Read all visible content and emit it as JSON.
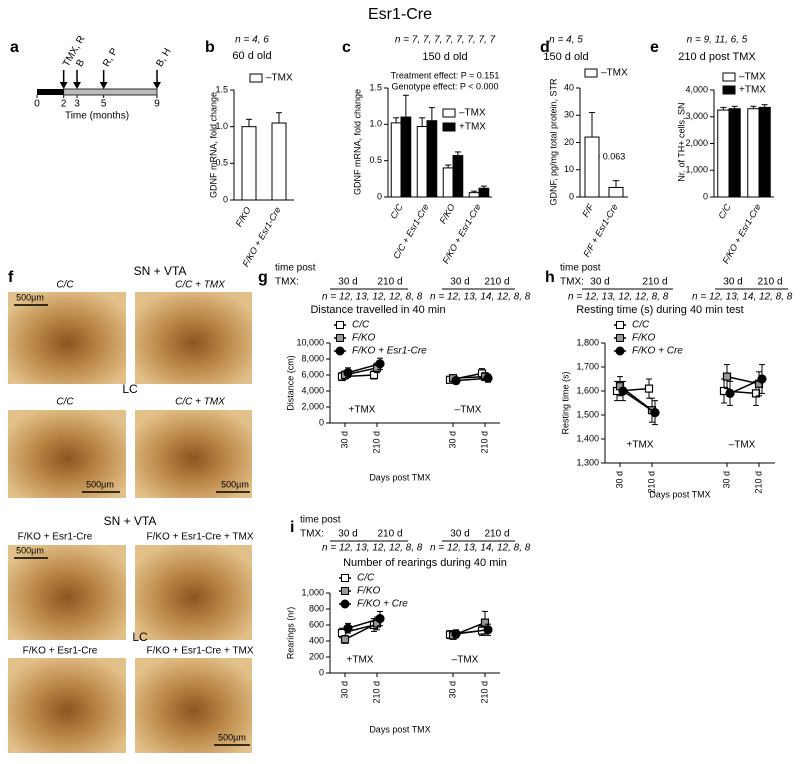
{
  "title": "Esr1-Cre",
  "chart_data": [
    {
      "type": "timeline",
      "letter": "a",
      "xlim": [
        0,
        9
      ],
      "xticks": [
        0,
        2,
        3,
        5,
        9
      ],
      "events": [
        {
          "at": 2,
          "label": "TMX, R"
        },
        {
          "at": 3,
          "label": "B"
        },
        {
          "at": 5,
          "label": "R, P"
        },
        {
          "at": 9,
          "label": "B, H"
        }
      ],
      "xlabel": "Time (months)"
    },
    {
      "type": "bar",
      "letter": "b",
      "n_label": "n = 4, 6",
      "subtitle": "60 d old",
      "ylabel": "GDNF mRNA, fold change",
      "categories": [
        "F/KO",
        "F/KO + Esr1-Cre"
      ],
      "series": [
        {
          "name": "–TMX",
          "color": "#ffffff",
          "values": [
            1.0,
            1.05
          ],
          "errors": [
            0.1,
            0.14
          ]
        }
      ],
      "ylim": [
        0,
        1.5
      ],
      "yticks": [
        0,
        0.5,
        {
          "value": 1,
          "label": "1.0"
        },
        1.5
      ]
    },
    {
      "type": "bar",
      "letter": "c",
      "n_label": "n = 7, 7, 7, 7, 7, 7, 7, 7",
      "subtitle": "150 d old",
      "ylabel": "GDNF mRNA, fold change",
      "annotations": [
        "Treatment effect: P = 0.151",
        "Genotype effect: P < 0.000"
      ],
      "categories": [
        "C/C",
        "C/C + Esr1-Cre",
        "F/KO",
        "F/KO + Esr1-Cre"
      ],
      "series": [
        {
          "name": "–TMX",
          "color": "#ffffff",
          "values": [
            1.02,
            0.97,
            0.4,
            0.06
          ],
          "errors": [
            0.07,
            0.12,
            0.04,
            0.02
          ]
        },
        {
          "name": "+TMX",
          "color": "#000000",
          "values": [
            1.1,
            1.05,
            0.57,
            0.12
          ],
          "errors": [
            0.3,
            0.18,
            0.05,
            0.03
          ]
        }
      ],
      "ylim": [
        0,
        1.5
      ],
      "yticks": [
        0,
        0.5,
        {
          "value": 1,
          "label": "1.0"
        },
        1.5
      ]
    },
    {
      "type": "bar",
      "letter": "d",
      "n_label": "n = 4, 5",
      "subtitle": "150 d old",
      "ylabel": "GDNF, pg/mg total protein, STR",
      "annotations": [
        "P = 0.063"
      ],
      "categories": [
        "F/F",
        "F/F + Esr1-Cre"
      ],
      "series": [
        {
          "name": "–TMX",
          "color": "#ffffff",
          "values": [
            22,
            3.5
          ],
          "errors": [
            9,
            2.5
          ]
        }
      ],
      "ylim": [
        0,
        40
      ],
      "yticks": [
        0,
        10,
        20,
        30,
        40
      ]
    },
    {
      "type": "bar",
      "letter": "e",
      "n_label": "n = 9, 11, 6, 5",
      "subtitle": "210 d post TMX",
      "ylabel": "Nr. of TH+ cells, SN",
      "categories": [
        "C/C",
        "F/KO + Esr1-Cre"
      ],
      "series": [
        {
          "name": "–TMX",
          "color": "#ffffff",
          "values": [
            3250,
            3300
          ],
          "errors": [
            100,
            90
          ]
        },
        {
          "name": "+TMX",
          "color": "#000000",
          "values": [
            3300,
            3350
          ],
          "errors": [
            90,
            100
          ]
        }
      ],
      "ylim": [
        0,
        4000
      ],
      "yticks": [
        0,
        {
          "value": 1000,
          "label": "1,000"
        },
        {
          "value": 2000,
          "label": "2,000"
        },
        {
          "value": 3000,
          "label": "3,000"
        },
        {
          "value": 4000,
          "label": "4,000"
        }
      ]
    },
    {
      "type": "line",
      "letter": "g",
      "header_top": "time post",
      "header_tmx": "TMX:",
      "header_days": [
        "30 d",
        "210 d",
        "30 d",
        "210 d"
      ],
      "n_labels": [
        "n = 12, 13, 12, 12, 8, 8",
        "n = 12, 13, 14, 12, 8, 8"
      ],
      "title": "Distance travelled in 40 min",
      "ylabel": "Distance (cm)",
      "xlabel": "Days post TMX",
      "categories": [
        "30 d",
        "210 d",
        "30 d",
        "210 d"
      ],
      "groups": [
        "+TMX",
        "–TMX"
      ],
      "series": [
        {
          "name": "C/C",
          "color": "#ffffff",
          "marker": "square",
          "values": [
            5800,
            6000,
            5400,
            6200
          ],
          "errors": [
            500,
            500,
            400,
            600
          ]
        },
        {
          "name": "F/KO",
          "color": "#999999",
          "marker": "square",
          "values": [
            6000,
            6900,
            5600,
            5800
          ],
          "errors": [
            500,
            600,
            400,
            500
          ]
        },
        {
          "name": "F/KO + Esr1-Cre",
          "color": "#000000",
          "marker": "circle",
          "values": [
            6300,
            7400,
            5300,
            5600
          ],
          "errors": [
            600,
            700,
            400,
            500
          ]
        }
      ],
      "ylim": [
        0,
        10000
      ],
      "yticks": [
        0,
        {
          "value": 2000,
          "label": "2,000"
        },
        {
          "value": 4000,
          "label": "4,000"
        },
        {
          "value": 6000,
          "label": "6,000"
        },
        {
          "value": 8000,
          "label": "8,000"
        },
        {
          "value": 10000,
          "label": "10,000"
        }
      ]
    },
    {
      "type": "line",
      "letter": "h",
      "header_top": "time post",
      "header_tmx": "TMX:",
      "header_days": [
        "30 d",
        "210 d",
        "30 d",
        "210 d"
      ],
      "n_labels": [
        "n = 12, 13, 12, 12, 8, 8",
        "n = 12, 13, 14, 12, 8, 8"
      ],
      "title": "Resting time (s) during 40 min test",
      "ylabel": "Resting time (s)",
      "xlabel": "Days post TMX",
      "categories": [
        "30 d",
        "210 d",
        "30 d",
        "210 d"
      ],
      "groups": [
        "+TMX",
        "–TMX"
      ],
      "series": [
        {
          "name": "C/C",
          "color": "#ffffff",
          "marker": "square",
          "values": [
            1600,
            1610,
            1600,
            1590
          ],
          "errors": [
            40,
            40,
            50,
            50
          ]
        },
        {
          "name": "F/KO",
          "color": "#999999",
          "marker": "square",
          "values": [
            1620,
            1520,
            1660,
            1630
          ],
          "errors": [
            40,
            50,
            50,
            50
          ]
        },
        {
          "name": "F/KO + Cre",
          "color": "#000000",
          "marker": "circle",
          "values": [
            1600,
            1510,
            1590,
            1650
          ],
          "errors": [
            40,
            50,
            50,
            60
          ]
        }
      ],
      "ylim": [
        1300,
        1800
      ],
      "yticks": [
        {
          "value": 1300,
          "label": "1,300"
        },
        {
          "value": 1400,
          "label": "1,400"
        },
        {
          "value": 1500,
          "label": "1,500"
        },
        {
          "value": 1600,
          "label": "1,600"
        },
        {
          "value": 1700,
          "label": "1,700"
        },
        {
          "value": 1800,
          "label": "1,800"
        }
      ]
    },
    {
      "type": "line",
      "letter": "i",
      "header_top": "time post",
      "header_tmx": "TMX:",
      "header_days": [
        "30 d",
        "210 d",
        "30 d",
        "210 d"
      ],
      "n_labels": [
        "n = 12, 13, 12, 12, 8, 8",
        "n = 12, 13, 14, 12, 8, 8"
      ],
      "title": "Number of rearings during 40 min",
      "ylabel": "Rearings (nr)",
      "xlabel": "Days post TMX",
      "categories": [
        "30 d",
        "210 d",
        "30 d",
        "210 d"
      ],
      "groups": [
        "+TMX",
        "–TMX"
      ],
      "series": [
        {
          "name": "C/C",
          "color": "#ffffff",
          "marker": "square",
          "values": [
            500,
            600,
            480,
            530
          ],
          "errors": [
            60,
            80,
            50,
            60
          ]
        },
        {
          "name": "F/KO",
          "color": "#999999",
          "marker": "square",
          "values": [
            420,
            620,
            470,
            630
          ],
          "errors": [
            50,
            80,
            50,
            140
          ]
        },
        {
          "name": "F/KO + Cre",
          "color": "#000000",
          "marker": "circle",
          "values": [
            560,
            680,
            490,
            540
          ],
          "errors": [
            60,
            90,
            50,
            70
          ]
        }
      ],
      "ylim": [
        0,
        1000
      ],
      "yticks": [
        0,
        200,
        400,
        600,
        800,
        {
          "value": 1000,
          "label": "1,000"
        }
      ]
    }
  ],
  "panel_f": {
    "letter": "f",
    "rows": [
      {
        "region": "SN + VTA",
        "images": [
          {
            "label": "C/C",
            "scale": "500µm"
          },
          {
            "label": "C/C + TMX"
          }
        ]
      },
      {
        "region": "LC",
        "images": [
          {
            "label": "C/C",
            "scale": "500µm"
          },
          {
            "label": "C/C + TMX",
            "scale": "500µm"
          }
        ]
      },
      {
        "region": "SN + VTA",
        "images": [
          {
            "label": "F/KO + Esr1-Cre",
            "scale": "500µm"
          },
          {
            "label": "F/KO + Esr1-Cre + TMX"
          }
        ]
      },
      {
        "region": "LC",
        "images": [
          {
            "label": "F/KO + Esr1-Cre"
          },
          {
            "label": "F/KO + Esr1-Cre + TMX",
            "scale": "500µm"
          }
        ]
      }
    ]
  }
}
